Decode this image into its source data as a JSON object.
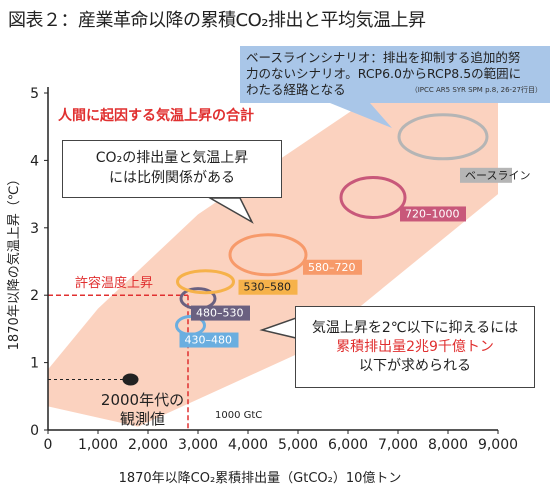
{
  "figure_title": "図表２：産業革命以降の累積CO₂排出と平均気温上昇",
  "chart_data": {
    "type": "scatter",
    "xlabel": "1870年以降CO₂累積排出量（GtCO₂）10億トン",
    "ylabel": "1870年以降の気温上昇（℃）",
    "xlim": [
      0,
      9000
    ],
    "ylim": [
      0,
      5
    ],
    "x_ticks": [
      "0",
      "1,000",
      "2,000",
      "3,000",
      "4,000",
      "5,000",
      "6,000",
      "7,000",
      "8,000",
      "9,000"
    ],
    "y_ticks": [
      "0",
      "1",
      "2",
      "3",
      "4",
      "5"
    ],
    "band_label": "人間に起因する気温上昇の合計",
    "scenarios": [
      {
        "label": "430–480",
        "x": 2850,
        "y": 1.55,
        "color": "#6aaee0"
      },
      {
        "label": "480–530",
        "x": 3000,
        "y": 1.95,
        "color": "#6a6080"
      },
      {
        "label": "530–580",
        "x": 3150,
        "y": 2.2,
        "color": "#f6b24a"
      },
      {
        "label": "580–720",
        "x": 4400,
        "y": 2.6,
        "color": "#f79a6a"
      },
      {
        "label": "720–1000",
        "x": 6500,
        "y": 3.45,
        "color": "#c8587a"
      },
      {
        "label": "ベースライン",
        "x": 7900,
        "y": 4.35,
        "color": "#b5b5b5"
      }
    ],
    "observed": {
      "x": 1650,
      "y": 0.75,
      "label_line1": "2000年代の",
      "label_line2": "観測値"
    },
    "reference_line": {
      "y": 2,
      "x": 2800,
      "label": "許容温度上昇"
    },
    "scale_note": "1000 GtC"
  },
  "annotations": {
    "baseline_box": {
      "line1": "ベースラインシナリオ：排出を抑制する追加的努",
      "line2": "力のないシナリオ。RCP6.0からRCP8.5の範囲に",
      "line3": "わたる経路となる",
      "source": "（IPCC AR5 SYR SPM p.8, 26-27行目）"
    },
    "co2_box": {
      "line1": "CO₂の排出量と気温上昇",
      "line2": "には比例関係がある"
    },
    "limit_box": {
      "line1": "気温上昇を2℃以下に抑えるには",
      "line2": "累積排出量2兆9千億トン",
      "line3": "以下が求められる"
    }
  },
  "colors": {
    "band": "#fbd2bf",
    "red": "#e03030",
    "callout_blue": "#a9c6e8"
  }
}
